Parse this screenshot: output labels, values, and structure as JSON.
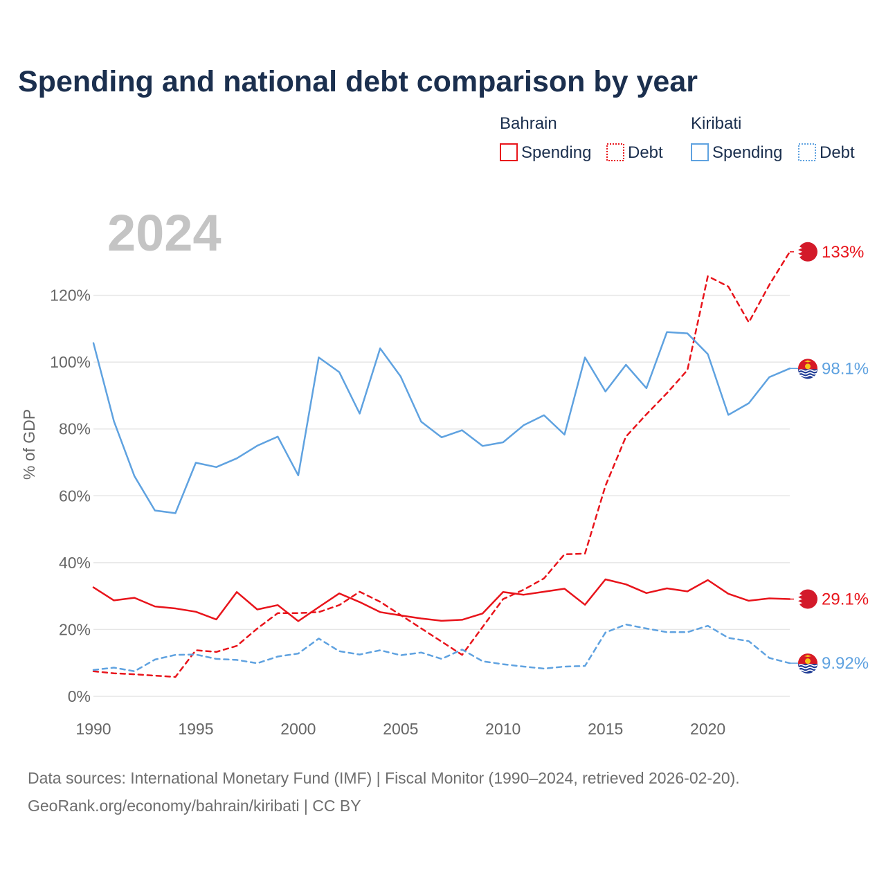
{
  "chart_data": {
    "type": "line",
    "title": "Spending and national debt comparison by year",
    "year_watermark": "2024",
    "ylabel": "% of GDP",
    "ylim": [
      0,
      140
    ],
    "xlim": [
      1990,
      2024
    ],
    "yticks": [
      0,
      20,
      40,
      60,
      80,
      100,
      120
    ],
    "ytick_labels": [
      "0%",
      "20%",
      "40%",
      "60%",
      "80%",
      "100%",
      "120%"
    ],
    "xticks": [
      1990,
      1995,
      2000,
      2005,
      2010,
      2015,
      2020
    ],
    "xtick_labels": [
      "1990",
      "1995",
      "2000",
      "2005",
      "2010",
      "2015",
      "2020"
    ],
    "grid": true,
    "legend": {
      "position": "top-right",
      "groups": [
        {
          "country": "Bahrain",
          "color": "#e8141b",
          "items": [
            {
              "label": "Spending",
              "style": "solid"
            },
            {
              "label": "Debt",
              "style": "dotted"
            }
          ]
        },
        {
          "country": "Kiribati",
          "color": "#5fa2e0",
          "items": [
            {
              "label": "Spending",
              "style": "solid"
            },
            {
              "label": "Debt",
              "style": "dotted"
            }
          ]
        }
      ]
    },
    "x": [
      1990,
      1991,
      1992,
      1993,
      1994,
      1995,
      1996,
      1997,
      1998,
      1999,
      2000,
      2001,
      2002,
      2003,
      2004,
      2005,
      2006,
      2007,
      2008,
      2009,
      2010,
      2011,
      2012,
      2013,
      2014,
      2015,
      2016,
      2017,
      2018,
      2019,
      2020,
      2021,
      2022,
      2023,
      2024
    ],
    "series": [
      {
        "name": "Bahrain Spending",
        "country": "Bahrain",
        "metric": "Spending",
        "color": "#e8141b",
        "dash": "solid",
        "values": [
          32.6,
          28.7,
          29.5,
          26.9,
          26.3,
          25.3,
          23.0,
          31.2,
          26.0,
          27.3,
          22.5,
          26.7,
          30.8,
          28.2,
          25.2,
          24.2,
          23.3,
          22.6,
          22.9,
          24.8,
          31.2,
          30.4,
          31.3,
          32.2,
          27.4,
          35.0,
          33.5,
          30.9,
          32.3,
          31.4,
          34.8,
          30.7,
          28.6,
          29.3,
          29.1
        ]
      },
      {
        "name": "Bahrain Debt",
        "country": "Bahrain",
        "metric": "Debt",
        "color": "#e8141b",
        "dash": "dashed",
        "values": [
          7.5,
          6.9,
          6.6,
          6.2,
          5.8,
          13.8,
          13.3,
          15.1,
          20.3,
          24.9,
          24.9,
          25.2,
          27.3,
          31.3,
          28.3,
          null,
          null,
          null,
          12.4,
          null,
          29.1,
          31.9,
          35.3,
          42.5,
          42.7,
          63.0,
          77.7,
          84.4,
          90.7,
          97.6,
          125.7,
          122.6,
          111.9,
          123.1,
          133.0
        ]
      },
      {
        "name": "Kiribati Spending",
        "country": "Kiribati",
        "metric": "Spending",
        "color": "#5fa2e0",
        "dash": "solid",
        "values": [
          105.7,
          82.3,
          65.9,
          55.6,
          54.8,
          69.9,
          68.6,
          71.2,
          75.0,
          77.7,
          66.1,
          101.4,
          97.0,
          84.6,
          104.1,
          95.7,
          82.2,
          77.5,
          79.6,
          74.9,
          76.0,
          81.1,
          84.1,
          78.3,
          101.4,
          91.2,
          99.2,
          92.2,
          109.0,
          108.6,
          102.4,
          84.2,
          87.7,
          95.5,
          98.1
        ]
      },
      {
        "name": "Kiribati Debt",
        "country": "Kiribati",
        "metric": "Debt",
        "color": "#5fa2e0",
        "dash": "dashed",
        "values": [
          7.9,
          8.6,
          7.5,
          11.0,
          12.4,
          12.5,
          11.2,
          10.9,
          9.9,
          11.9,
          12.8,
          17.3,
          13.5,
          12.5,
          13.8,
          12.3,
          13.1,
          11.2,
          14.0,
          10.5,
          9.6,
          8.9,
          8.3,
          8.9,
          9.1,
          19.1,
          21.5,
          20.3,
          19.2,
          19.2,
          21.1,
          17.5,
          16.5,
          11.5,
          9.92
        ]
      }
    ],
    "end_labels": [
      {
        "series": "Bahrain Debt",
        "text": "133%",
        "value": 133.0
      },
      {
        "series": "Kiribati Spending",
        "text": "98.1%",
        "value": 98.1
      },
      {
        "series": "Bahrain Spending",
        "text": "29.1%",
        "value": 29.1
      },
      {
        "series": "Kiribati Debt",
        "text": "9.92%",
        "value": 9.92
      }
    ]
  },
  "source": {
    "line1": "Data sources: International Monetary Fund (IMF) | Fiscal Monitor (1990–2024, retrieved 2026-02-20).",
    "line2": "GeoRank.org/economy/bahrain/kiribati | CC BY"
  },
  "colors": {
    "bahrain": "#e8141b",
    "kiribati": "#5fa2e0",
    "title": "#1b2f4e",
    "grid": "#e6e6e6",
    "axis_text": "#666666"
  }
}
